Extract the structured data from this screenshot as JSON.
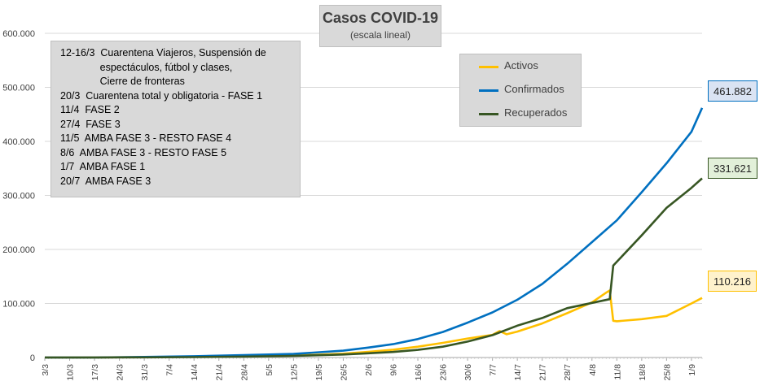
{
  "chart_data": {
    "type": "line",
    "title": "Casos COVID-19",
    "subtitle": "(escala lineal)",
    "ylim": [
      0,
      600000
    ],
    "y_ticks": [
      "0",
      "100.000",
      "200.000",
      "300.000",
      "400.000",
      "500.000",
      "600.000"
    ],
    "x_ticks": [
      "3/3",
      "10/3",
      "17/3",
      "24/3",
      "31/3",
      "7/4",
      "14/4",
      "21/4",
      "28/4",
      "5/5",
      "12/5",
      "19/5",
      "26/5",
      "2/6",
      "9/6",
      "16/6",
      "23/6",
      "30/6",
      "7/7",
      "14/7",
      "21/7",
      "28/7",
      "4/8",
      "11/8",
      "18/8",
      "25/8",
      "1/9"
    ],
    "grid": "horizontal",
    "legend_position": "top-right",
    "annotations": [
      "12-16/3  Cuarentena Viajeros, Suspensión de\n              espectáculos, fútbol y clases,\n              Cierre de fronteras",
      "20/3  Cuarentena total y obligatoria - FASE 1",
      "11/4  FASE 2",
      "27/4  FASE 3",
      "11/5  AMBA FASE 3 - RESTO FASE 4",
      "8/6  AMBA FASE 3 - RESTO FASE 5",
      "1/7  AMBA FASE 1",
      "20/7  AMBA FASE 3"
    ],
    "series": [
      {
        "name": "Activos",
        "color": "#ffc000",
        "points": [
          [
            "3/3",
            0
          ],
          [
            "17/3",
            100
          ],
          [
            "31/3",
            800
          ],
          [
            "14/4",
            1700
          ],
          [
            "28/4",
            2600
          ],
          [
            "12/5",
            3500
          ],
          [
            "26/5",
            7000
          ],
          [
            "2/6",
            10500
          ],
          [
            "9/6",
            14500
          ],
          [
            "16/6",
            20000
          ],
          [
            "23/6",
            27000
          ],
          [
            "30/6",
            35000
          ],
          [
            "7/7",
            42000
          ],
          [
            "9/7",
            49000
          ],
          [
            "11/7",
            43000
          ],
          [
            "14/7",
            48000
          ],
          [
            "21/7",
            63000
          ],
          [
            "28/7",
            82000
          ],
          [
            "4/8",
            102000
          ],
          [
            "8/8",
            120000
          ],
          [
            "9/8",
            124000
          ],
          [
            "10/8",
            68000
          ],
          [
            "11/8",
            67000
          ],
          [
            "18/8",
            71000
          ],
          [
            "25/8",
            77000
          ],
          [
            "1/9",
            100000
          ],
          [
            "4/9",
            110216
          ]
        ]
      },
      {
        "name": "Confirmados",
        "color": "#0070c0",
        "points": [
          [
            "3/3",
            1
          ],
          [
            "17/3",
            65
          ],
          [
            "31/3",
            1100
          ],
          [
            "14/4",
            2400
          ],
          [
            "28/4",
            4300
          ],
          [
            "12/5",
            6600
          ],
          [
            "26/5",
            12600
          ],
          [
            "2/6",
            18300
          ],
          [
            "9/6",
            24700
          ],
          [
            "16/6",
            34200
          ],
          [
            "23/6",
            47200
          ],
          [
            "30/6",
            64500
          ],
          [
            "7/7",
            83400
          ],
          [
            "14/7",
            106900
          ],
          [
            "21/7",
            136100
          ],
          [
            "28/7",
            173300
          ],
          [
            "4/8",
            213500
          ],
          [
            "11/8",
            253800
          ],
          [
            "18/8",
            305900
          ],
          [
            "25/8",
            359600
          ],
          [
            "1/9",
            417700
          ],
          [
            "4/9",
            461882
          ]
        ]
      },
      {
        "name": "Recuperados",
        "color": "#375623",
        "points": [
          [
            "3/3",
            0
          ],
          [
            "17/3",
            0
          ],
          [
            "31/3",
            300
          ],
          [
            "14/4",
            700
          ],
          [
            "28/4",
            1700
          ],
          [
            "12/5",
            3000
          ],
          [
            "26/5",
            5600
          ],
          [
            "2/6",
            7800
          ],
          [
            "9/6",
            10200
          ],
          [
            "16/6",
            14200
          ],
          [
            "23/6",
            20000
          ],
          [
            "30/6",
            29500
          ],
          [
            "7/7",
            41400
          ],
          [
            "14/7",
            58900
          ],
          [
            "21/7",
            73100
          ],
          [
            "28/7",
            91300
          ],
          [
            "9/8",
            108000
          ],
          [
            "10/8",
            170000
          ],
          [
            "18/8",
            226000
          ],
          [
            "25/8",
            277000
          ],
          [
            "1/9",
            314000
          ],
          [
            "4/9",
            331621
          ]
        ]
      }
    ],
    "end_labels": [
      {
        "series": "Confirmados",
        "text": "461.882",
        "border": "#0070c0",
        "fill": "#dae3f3"
      },
      {
        "series": "Recuperados",
        "text": "331.621",
        "border": "#375623",
        "fill": "#e2f0d9"
      },
      {
        "series": "Activos",
        "text": "110.216",
        "border": "#ffc000",
        "fill": "#fff2cc"
      }
    ]
  }
}
